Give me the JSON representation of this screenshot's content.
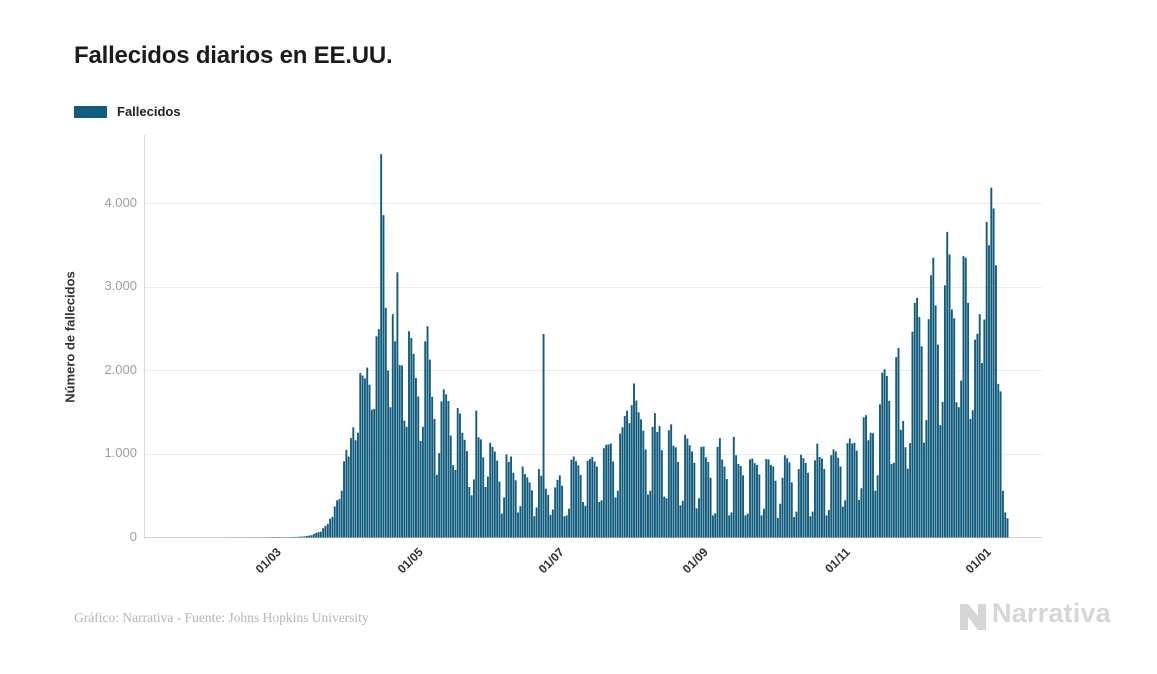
{
  "header": {
    "title": "Fallecidos diarios en EE.UU."
  },
  "legend": {
    "label": "Fallecidos",
    "swatch_color": "#125d7e"
  },
  "footer": {
    "attribution": "Gráfico: Narrativa - Fuente: Johns Hopkins University"
  },
  "logo": {
    "text": "Narrativa",
    "color": "#d6d6d6"
  },
  "chart_data": {
    "type": "bar",
    "title": "Fallecidos diarios en EE.UU.",
    "ylabel": "Número de fallecidos",
    "ylim": [
      0,
      4800
    ],
    "grid": true,
    "legend_position": "top-left",
    "bar_color": "#125d7e",
    "y_ticks": [
      {
        "value": 0,
        "label": "0"
      },
      {
        "value": 1000,
        "label": "1.000"
      },
      {
        "value": 2000,
        "label": "2.000"
      },
      {
        "value": 3000,
        "label": "3.000"
      },
      {
        "value": 4000,
        "label": "4.000"
      }
    ],
    "x_ticks": [
      {
        "pos": 39,
        "label": "01/03"
      },
      {
        "pos": 100,
        "label": "01/05"
      },
      {
        "pos": 161,
        "label": "01/07"
      },
      {
        "pos": 223,
        "label": "01/09"
      },
      {
        "pos": 284,
        "label": "01/11"
      },
      {
        "pos": 345,
        "label": "01/01"
      }
    ],
    "series": [
      {
        "name": "Fallecidos",
        "values": [
          0,
          0,
          0,
          0,
          0,
          0,
          0,
          0,
          0,
          0,
          0,
          0,
          0,
          0,
          0,
          0,
          1,
          1,
          1,
          1,
          1,
          1,
          2,
          1,
          1,
          2,
          1,
          1,
          2,
          1,
          2,
          2,
          3,
          2,
          2,
          3,
          3,
          4,
          5,
          6,
          4,
          6,
          4,
          5,
          3,
          5,
          6,
          5,
          7,
          8,
          10,
          12,
          14,
          18,
          24,
          28,
          42,
          56,
          64,
          70,
          111,
          140,
          164,
          225,
          247,
          372,
          445,
          460,
          560,
          912,
          1050,
          970,
          1190,
          1320,
          1165,
          1255,
          1970,
          1940,
          1905,
          2035,
          1830,
          1530,
          1540,
          2410,
          2495,
          4591,
          3860,
          2750,
          2000,
          1560,
          2675,
          2350,
          3176,
          2065,
          2060,
          1400,
          1325,
          2470,
          2390,
          2200,
          1910,
          1690,
          1155,
          1325,
          2350,
          2530,
          2130,
          1685,
          1420,
          750,
          1010,
          1630,
          1775,
          1715,
          1635,
          1220,
          865,
          810,
          1550,
          1485,
          1255,
          1170,
          1035,
          605,
          505,
          695,
          1520,
          1200,
          1175,
          960,
          605,
          730,
          1135,
          1085,
          1030,
          920,
          670,
          285,
          480,
          995,
          905,
          970,
          775,
          685,
          300,
          375,
          850,
          760,
          720,
          660,
          565,
          255,
          360,
          820,
          740,
          2437,
          585,
          510,
          270,
          335,
          600,
          690,
          745,
          620,
          255,
          265,
          345,
          930,
          970,
          915,
          865,
          750,
          425,
          380,
          920,
          940,
          965,
          910,
          850,
          425,
          445,
          1070,
          1110,
          1115,
          1125,
          910,
          480,
          560,
          1245,
          1320,
          1455,
          1520,
          1370,
          1585,
          1845,
          1640,
          1500,
          1415,
          1280,
          1055,
          515,
          560,
          1325,
          1490,
          1265,
          1335,
          1045,
          490,
          470,
          1285,
          1355,
          1100,
          1080,
          905,
          385,
          440,
          1230,
          1185,
          1105,
          1030,
          895,
          350,
          470,
          1085,
          1090,
          960,
          905,
          715,
          265,
          290,
          1085,
          1190,
          935,
          850,
          700,
          265,
          300,
          1205,
          985,
          880,
          855,
          745,
          265,
          285,
          935,
          945,
          890,
          870,
          755,
          265,
          345,
          940,
          935,
          870,
          850,
          680,
          235,
          405,
          715,
          985,
          950,
          900,
          660,
          245,
          310,
          820,
          990,
          950,
          895,
          775,
          255,
          310,
          925,
          1125,
          965,
          945,
          820,
          265,
          330,
          985,
          1055,
          1030,
          955,
          850,
          370,
          445,
          1130,
          1185,
          1125,
          1135,
          1040,
          450,
          590,
          1440,
          1465,
          1165,
          1255,
          1250,
          560,
          745,
          1595,
          1975,
          2015,
          1935,
          1635,
          880,
          895,
          2160,
          2270,
          1290,
          1395,
          1080,
          825,
          1130,
          2465,
          2810,
          2870,
          2640,
          2290,
          1135,
          1405,
          2615,
          3140,
          3350,
          2780,
          2310,
          1345,
          1625,
          3020,
          3660,
          3390,
          2730,
          2625,
          1620,
          1560,
          1880,
          3370,
          3350,
          2810,
          1420,
          1525,
          2370,
          2440,
          2675,
          2090,
          2610,
          3780,
          3500,
          4190,
          3940,
          3260,
          1840,
          1750,
          560,
          300,
          230
        ]
      }
    ]
  }
}
